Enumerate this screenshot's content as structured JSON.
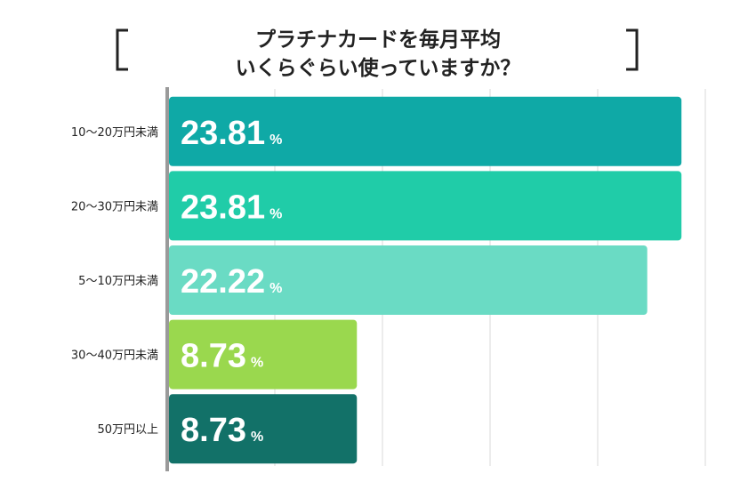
{
  "chart_data": {
    "type": "bar",
    "orientation": "horizontal",
    "title_lines": [
      "プラチナカードを毎月平均",
      "いくらぐらい使っていますか？"
    ],
    "categories": [
      "10〜20万円未満",
      "20〜30万円未満",
      "5〜10万円未満",
      "30〜40万円未満",
      "50万円以上"
    ],
    "values": [
      23.81,
      23.81,
      22.22,
      8.73,
      8.73
    ],
    "value_labels": [
      "23.81",
      "23.81",
      "22.22",
      "8.73",
      "8.73"
    ],
    "unit": "%",
    "colors": [
      "#0fa9a6",
      "#20cca8",
      "#6adbc4",
      "#9ad84e",
      "#127168"
    ],
    "xlim": [
      0,
      25
    ],
    "grid": true,
    "legend": "none"
  }
}
